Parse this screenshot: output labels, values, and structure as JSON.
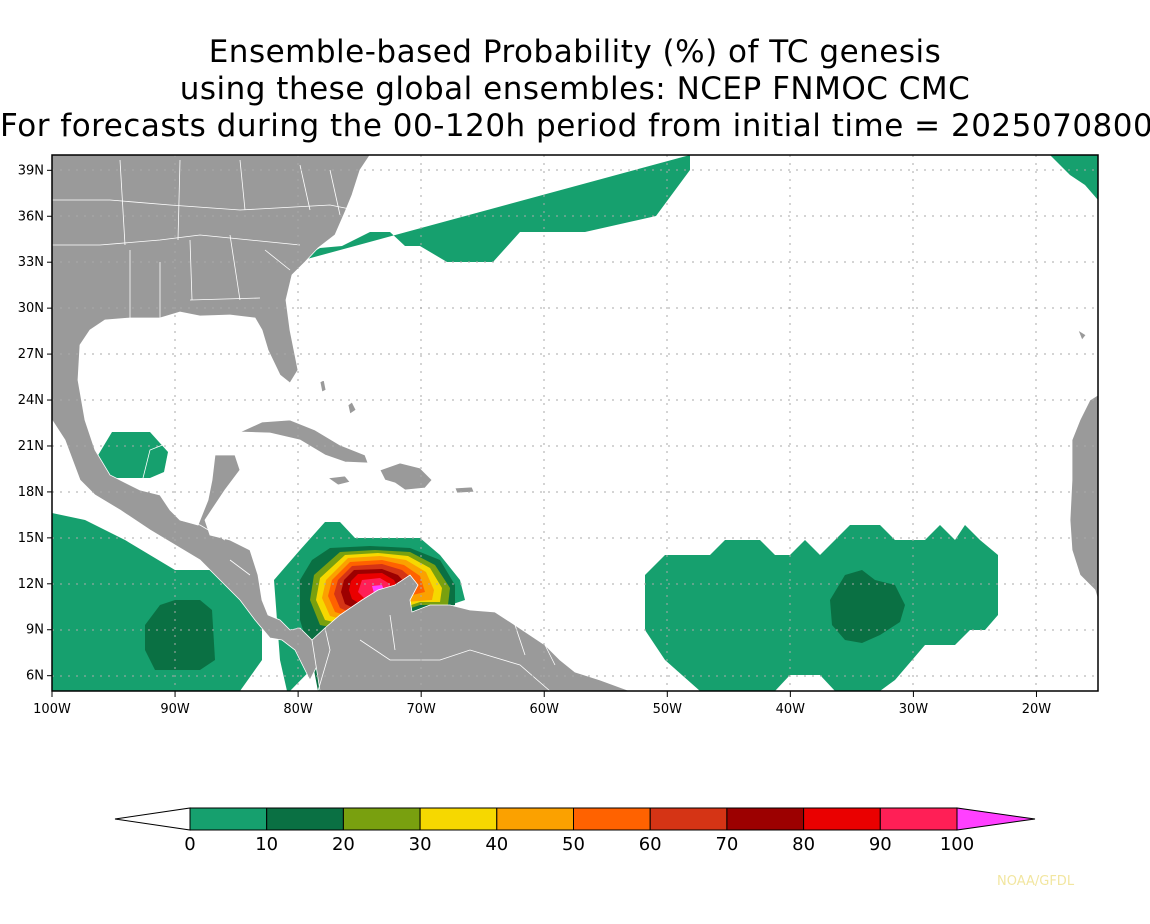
{
  "title": {
    "line1": "Ensemble-based Probability (%) of TC genesis",
    "line2": "using these global ensembles:   NCEP FNMOC CMC",
    "line3": "For forecasts during the 00-120h period from initial time = 2025070800"
  },
  "map": {
    "lon_range": [
      -100,
      -15
    ],
    "lat_range": [
      5,
      40
    ],
    "lat_ticks": [
      {
        "lat": 39,
        "label": "39N"
      },
      {
        "lat": 36,
        "label": "36N"
      },
      {
        "lat": 33,
        "label": "33N"
      },
      {
        "lat": 30,
        "label": "30N"
      },
      {
        "lat": 27,
        "label": "27N"
      },
      {
        "lat": 24,
        "label": "24N"
      },
      {
        "lat": 21,
        "label": "21N"
      },
      {
        "lat": 18,
        "label": "18N"
      },
      {
        "lat": 15,
        "label": "15N"
      },
      {
        "lat": 12,
        "label": "12N"
      },
      {
        "lat": 9,
        "label": "9N"
      },
      {
        "lat": 6,
        "label": "6N"
      }
    ],
    "lon_ticks": [
      {
        "lon": -100,
        "label": "100W"
      },
      {
        "lon": -90,
        "label": "90W"
      },
      {
        "lon": -80,
        "label": "80W"
      },
      {
        "lon": -70,
        "label": "70W"
      },
      {
        "lon": -60,
        "label": "60W"
      },
      {
        "lon": -50,
        "label": "50W"
      },
      {
        "lon": -40,
        "label": "40W"
      },
      {
        "lon": -30,
        "label": "30W"
      },
      {
        "lon": -20,
        "label": "20W"
      }
    ],
    "colors": {
      "land": "#9a9a9a",
      "ocean": "#ffffff",
      "grid": "#aaaaaa",
      "border": "#ffffff"
    }
  },
  "probability_regions": [
    {
      "name": "gulf-of-mexico-10",
      "level": 10
    },
    {
      "name": "east-pacific-10",
      "level": 10
    },
    {
      "name": "east-pacific-20",
      "level": 20
    },
    {
      "name": "western-atlantic-10",
      "level": 10
    },
    {
      "name": "caribbean-core",
      "level": 100
    },
    {
      "name": "central-atlantic-10",
      "level": 10
    },
    {
      "name": "central-atlantic-20",
      "level": 20
    },
    {
      "name": "africa-coast-10",
      "level": 10
    }
  ],
  "colorbar": {
    "levels": [
      0,
      10,
      20,
      30,
      40,
      50,
      60,
      70,
      80,
      90,
      100
    ],
    "labels": [
      "0",
      "10",
      "20",
      "30",
      "40",
      "50",
      "60",
      "70",
      "80",
      "90",
      "100"
    ],
    "colors": [
      "#ffffff",
      "#16a06e",
      "#0a7043",
      "#79a00f",
      "#f6d800",
      "#fba100",
      "#ff6200",
      "#d53415",
      "#9c0000",
      "#ea0000",
      "#ff1f56",
      "#ff40ff"
    ]
  },
  "credit": "NOAA/GFDL"
}
